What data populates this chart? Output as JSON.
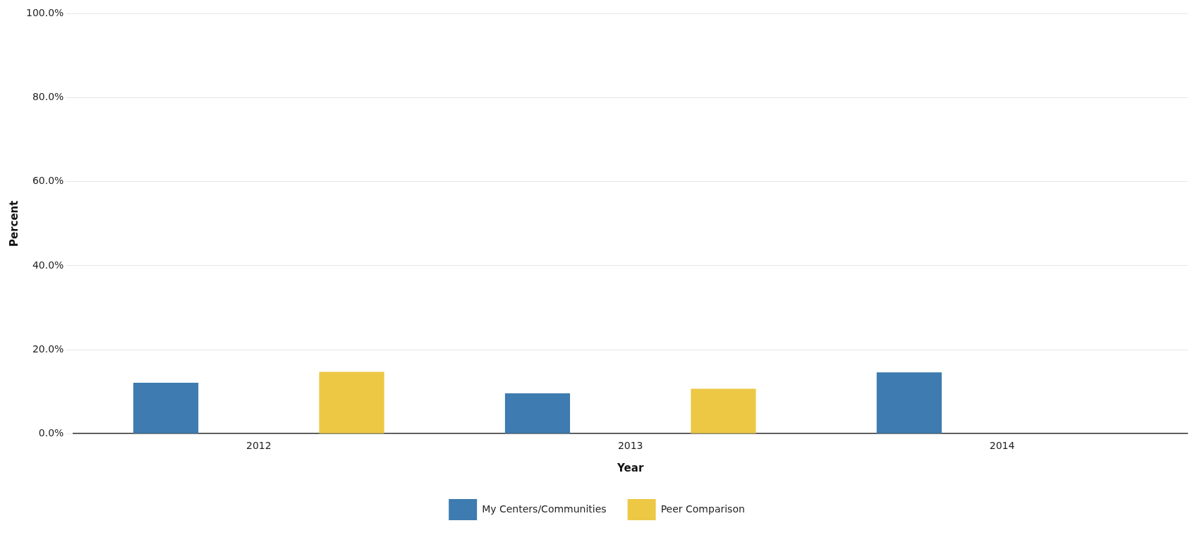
{
  "chart_data": {
    "type": "bar",
    "xlabel": "Year",
    "ylabel": "Percent",
    "categories": [
      "2012",
      "2013",
      "2014"
    ],
    "series": [
      {
        "name": "My Centers/Communities",
        "color": "#3d7bb0",
        "values": [
          12.1,
          9.6,
          14.6
        ]
      },
      {
        "name": "Peer Comparison",
        "color": "#ecc845",
        "values": [
          14.7,
          10.7,
          null
        ]
      }
    ],
    "ylim": [
      0,
      100
    ],
    "yticks": [
      {
        "value": 0,
        "label": "0.0%"
      },
      {
        "value": 20,
        "label": "20.0%"
      },
      {
        "value": 40,
        "label": "40.0%"
      },
      {
        "value": 60,
        "label": "60.0%"
      },
      {
        "value": 80,
        "label": "80.0%"
      },
      {
        "value": 100,
        "label": "100.0%"
      }
    ],
    "grid": "y",
    "legend": "bottom"
  }
}
